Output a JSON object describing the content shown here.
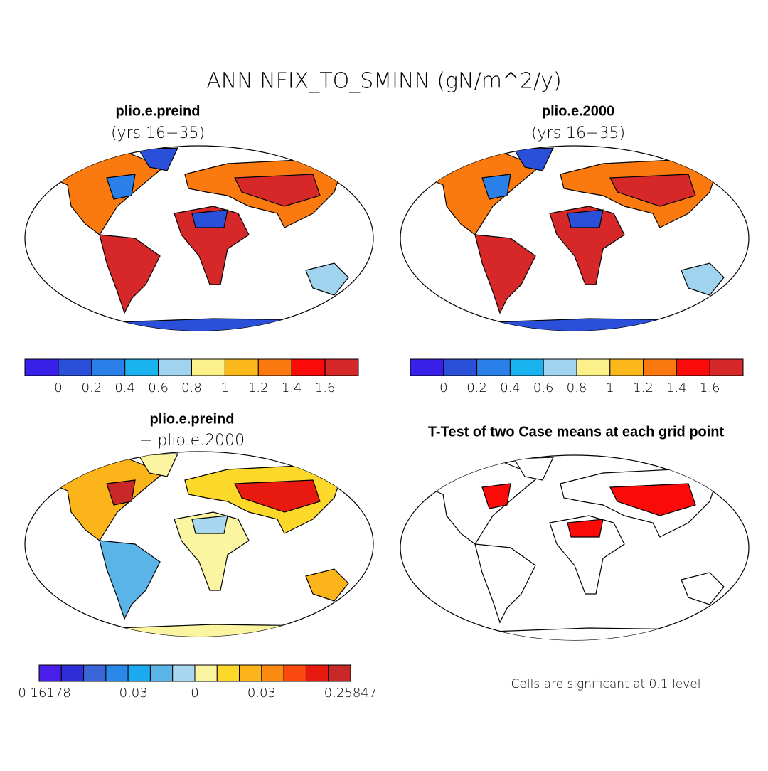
{
  "title": "ANN NFIX_TO_SMINN (gN/m^2/y)",
  "panels": [
    {
      "title": "plio.e.preind",
      "subtitle": "(yrs 16−35)",
      "colorbar": {
        "colors": [
          "#3a1fe8",
          "#2a4fd8",
          "#2a7fe8",
          "#19b4f0",
          "#a0d4ee",
          "#fbf08a",
          "#fbb81a",
          "#fb7a10",
          "#fb0a0a",
          "#d62828"
        ],
        "boundary_labels": [
          null,
          "0",
          "0.2",
          "0.4",
          "0.6",
          "0.8",
          "1",
          "1.2",
          "1.4",
          "1.6",
          null
        ]
      }
    },
    {
      "title": "plio.e.2000",
      "subtitle": "(yrs 16−35)",
      "colorbar": {
        "colors": [
          "#3a1fe8",
          "#2a4fd8",
          "#2a7fe8",
          "#19b4f0",
          "#a0d4ee",
          "#fbf08a",
          "#fbb81a",
          "#fb7a10",
          "#fb0a0a",
          "#d62828"
        ],
        "boundary_labels": [
          null,
          "0",
          "0.2",
          "0.4",
          "0.6",
          "0.8",
          "1",
          "1.2",
          "1.4",
          "1.6",
          null
        ]
      }
    },
    {
      "title": "plio.e.preind",
      "subtitle": "− plio.e.2000",
      "colorbar": {
        "colors": [
          "#4a1ee8",
          "#2e2ed8",
          "#3a66d8",
          "#2a88e8",
          "#1aaaf0",
          "#5ab4e8",
          "#a8d8f0",
          "#fbf4a0",
          "#fbd82a",
          "#fbb41a",
          "#fb8a10",
          "#fb4a10",
          "#e81a10",
          "#c82828"
        ],
        "boundary_labels": [
          "−0.16178",
          null,
          null,
          null,
          "−0.03",
          null,
          null,
          "0",
          null,
          null,
          "0.03",
          null,
          null,
          null,
          "0.25847"
        ]
      }
    },
    {
      "title": "T-Test of two Case means at each grid point",
      "note": "Cells are significant at 0.1 level"
    }
  ]
}
